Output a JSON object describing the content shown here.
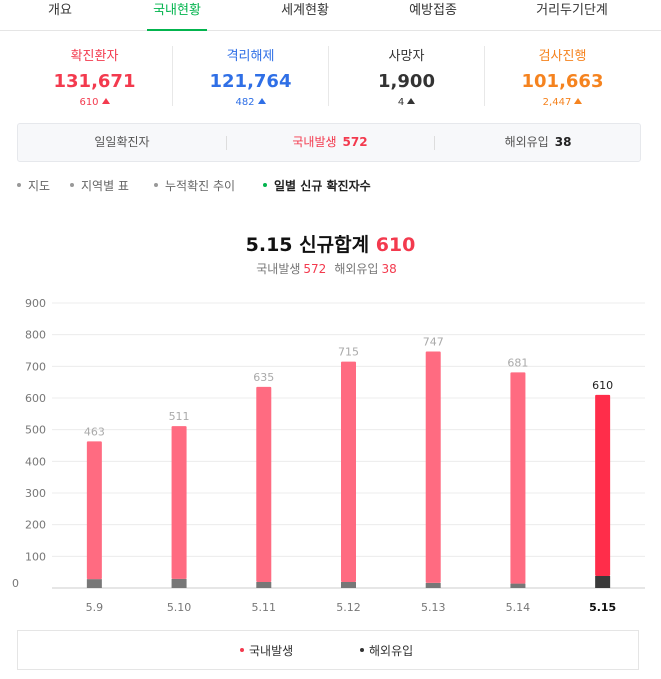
{
  "tabs": [
    "개요",
    "국내현황",
    "세계현황",
    "예방접종",
    "거리두기단계"
  ],
  "active_tab": 1,
  "stats": [
    {
      "label": "확진환자",
      "value": "131,671",
      "delta": "610",
      "color": "#f33a4e"
    },
    {
      "label": "격리해제",
      "value": "121,764",
      "delta": "482",
      "color": "#2f6fe6"
    },
    {
      "label": "사망자",
      "value": "1,900",
      "delta": "4",
      "color": "#333333"
    },
    {
      "label": "검사진행",
      "value": "101,663",
      "delta": "2,447",
      "color": "#f5831f"
    }
  ],
  "daily": {
    "title": "일일확진자",
    "domestic_label": "국내발생",
    "domestic_value": "572",
    "overseas_label": "해외유입",
    "overseas_value": "38"
  },
  "submenu": [
    "지도",
    "지역별 표",
    "누적확진 추이",
    "일별 신규 확진자수"
  ],
  "active_submenu": 3,
  "chart_heading": {
    "date": "5.15",
    "label": "신규합계",
    "total": "610",
    "domestic_label": "국내발생",
    "domestic_value": "572",
    "overseas_label": "해외유입",
    "overseas_value": "38"
  },
  "chart_data": {
    "type": "bar",
    "stacked": true,
    "categories": [
      "5.9",
      "5.10",
      "5.11",
      "5.12",
      "5.13",
      "5.14",
      "5.15"
    ],
    "totals": [
      463,
      511,
      635,
      715,
      747,
      681,
      610
    ],
    "series": [
      {
        "name": "국내발생",
        "values": [
          435,
          482,
          616,
          696,
          731,
          667,
          572
        ],
        "color": "#ff6b81"
      },
      {
        "name": "해외유입",
        "values": [
          28,
          29,
          19,
          19,
          16,
          14,
          38
        ],
        "color": "#777777"
      }
    ],
    "highlight_index": 6,
    "highlight_colors": {
      "domestic": "#ff2d4a",
      "overseas": "#3a3a3a"
    },
    "yticks": [
      0,
      100,
      200,
      300,
      400,
      500,
      600,
      700,
      800,
      900
    ],
    "ylim": [
      0,
      900
    ],
    "grid": true,
    "legend_position": "bottom"
  },
  "legend": [
    {
      "label": "국내발생",
      "color": "#f33a4e"
    },
    {
      "label": "해외유입",
      "color": "#333333"
    }
  ]
}
